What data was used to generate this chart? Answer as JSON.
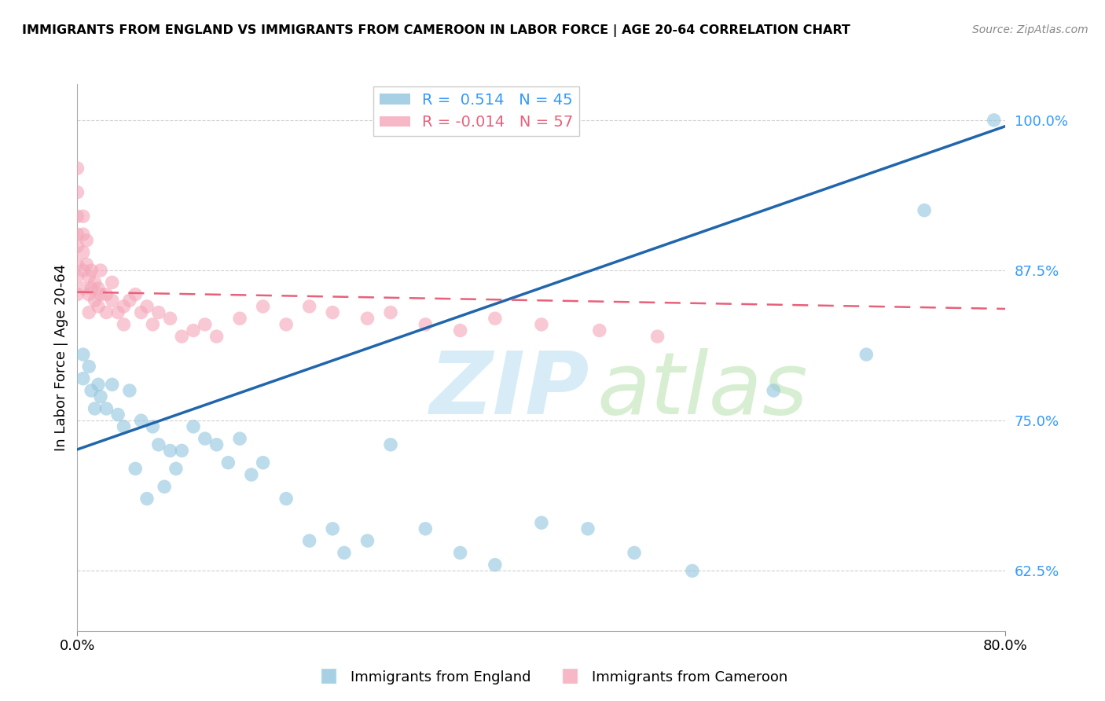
{
  "title": "IMMIGRANTS FROM ENGLAND VS IMMIGRANTS FROM CAMEROON IN LABOR FORCE | AGE 20-64 CORRELATION CHART",
  "source": "Source: ZipAtlas.com",
  "ylabel": "In Labor Force | Age 20-64",
  "xmin": 0.0,
  "xmax": 0.8,
  "ymin": 0.575,
  "ymax": 1.03,
  "yticks": [
    0.625,
    0.75,
    0.875,
    1.0
  ],
  "ytick_labels": [
    "62.5%",
    "75.0%",
    "87.5%",
    "100.0%"
  ],
  "xtick_labels": [
    "0.0%",
    "80.0%"
  ],
  "xticks": [
    0.0,
    0.8
  ],
  "r_england": 0.514,
  "n_england": 45,
  "r_cameroon": -0.014,
  "n_cameroon": 57,
  "england_color": "#92c5de",
  "cameroon_color": "#f4a6b8",
  "england_line_color": "#2166ac",
  "cameroon_line_color": "#e8607a",
  "england_scatter_x": [
    0.005,
    0.005,
    0.01,
    0.012,
    0.015,
    0.018,
    0.02,
    0.025,
    0.03,
    0.035,
    0.04,
    0.045,
    0.05,
    0.055,
    0.06,
    0.065,
    0.07,
    0.075,
    0.08,
    0.085,
    0.09,
    0.1,
    0.11,
    0.12,
    0.13,
    0.14,
    0.15,
    0.16,
    0.18,
    0.2,
    0.22,
    0.23,
    0.25,
    0.27,
    0.3,
    0.33,
    0.36,
    0.4,
    0.44,
    0.48,
    0.53,
    0.6,
    0.68,
    0.73,
    0.79
  ],
  "england_scatter_y": [
    0.805,
    0.785,
    0.795,
    0.775,
    0.76,
    0.78,
    0.77,
    0.76,
    0.78,
    0.755,
    0.745,
    0.775,
    0.71,
    0.75,
    0.685,
    0.745,
    0.73,
    0.695,
    0.725,
    0.71,
    0.725,
    0.745,
    0.735,
    0.73,
    0.715,
    0.735,
    0.705,
    0.715,
    0.685,
    0.65,
    0.66,
    0.64,
    0.65,
    0.73,
    0.66,
    0.64,
    0.63,
    0.665,
    0.66,
    0.64,
    0.625,
    0.775,
    0.805,
    0.925,
    1.0
  ],
  "cameroon_scatter_x": [
    0.0,
    0.0,
    0.0,
    0.0,
    0.0,
    0.0,
    0.0,
    0.0,
    0.005,
    0.005,
    0.005,
    0.005,
    0.005,
    0.008,
    0.008,
    0.01,
    0.01,
    0.01,
    0.012,
    0.012,
    0.015,
    0.015,
    0.018,
    0.018,
    0.02,
    0.02,
    0.025,
    0.025,
    0.03,
    0.03,
    0.035,
    0.04,
    0.04,
    0.045,
    0.05,
    0.055,
    0.06,
    0.065,
    0.07,
    0.08,
    0.09,
    0.1,
    0.11,
    0.12,
    0.14,
    0.16,
    0.18,
    0.2,
    0.22,
    0.25,
    0.27,
    0.3,
    0.33,
    0.36,
    0.4,
    0.45,
    0.5
  ],
  "cameroon_scatter_y": [
    0.96,
    0.94,
    0.92,
    0.905,
    0.895,
    0.88,
    0.87,
    0.855,
    0.92,
    0.905,
    0.89,
    0.875,
    0.86,
    0.9,
    0.88,
    0.87,
    0.855,
    0.84,
    0.875,
    0.86,
    0.865,
    0.85,
    0.86,
    0.845,
    0.875,
    0.855,
    0.855,
    0.84,
    0.865,
    0.85,
    0.84,
    0.845,
    0.83,
    0.85,
    0.855,
    0.84,
    0.845,
    0.83,
    0.84,
    0.835,
    0.82,
    0.825,
    0.83,
    0.82,
    0.835,
    0.845,
    0.83,
    0.845,
    0.84,
    0.835,
    0.84,
    0.83,
    0.825,
    0.835,
    0.83,
    0.825,
    0.82
  ],
  "england_trend_x": [
    0.0,
    0.8
  ],
  "england_trend_y": [
    0.726,
    0.995
  ],
  "cameroon_trend_x": [
    0.0,
    0.8
  ],
  "cameroon_trend_y": [
    0.857,
    0.843
  ],
  "grid_color": "#d0d0d0",
  "tick_label_color": "#3399ff"
}
